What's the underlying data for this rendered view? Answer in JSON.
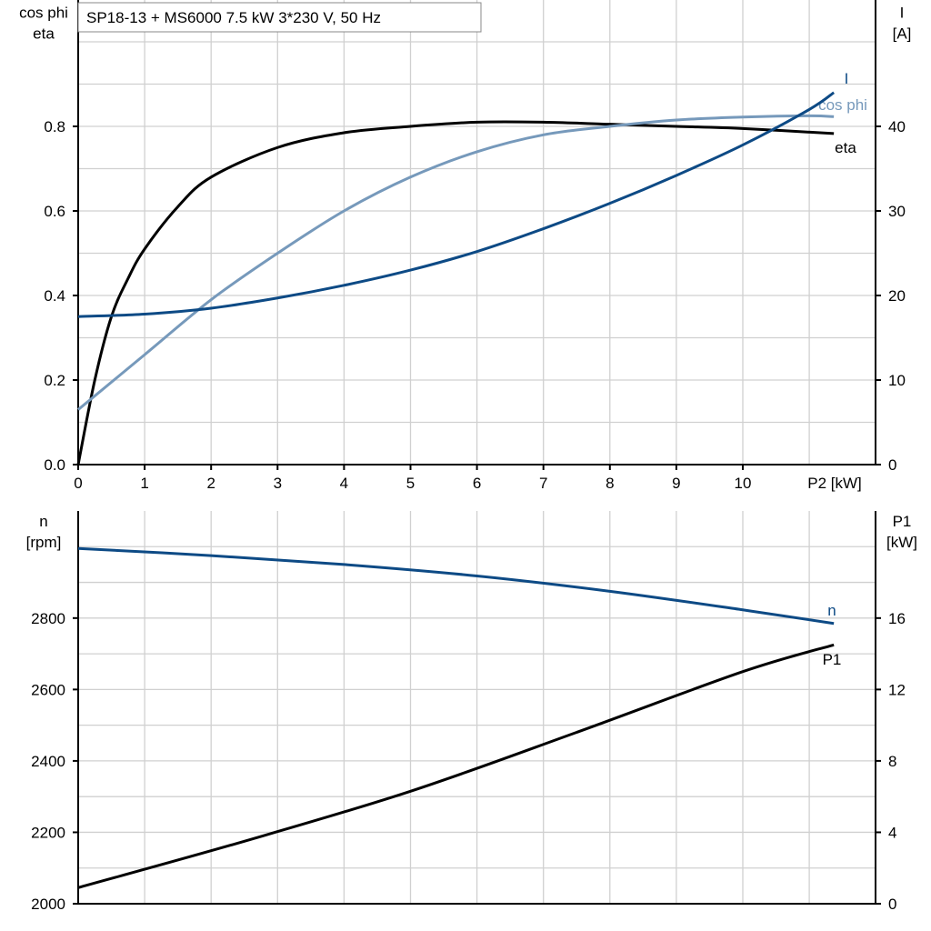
{
  "title": "SP18-13 + MS6000   7.5 kW   3*230 V, 50 Hz",
  "colors": {
    "eta": "#000000",
    "cos_phi": "#7699bb",
    "I": "#0d4a85",
    "n": "#0d4a85",
    "P1": "#000000",
    "grid": "#d0d0d0"
  },
  "chart_data": [
    {
      "type": "line",
      "xlabel": "P2 [kW]",
      "ylabel_left": [
        "cos phi",
        "eta"
      ],
      "ylabel_right": [
        "I",
        "[A]"
      ],
      "xlim": [
        0,
        12
      ],
      "ylim_left": [
        0,
        1.1
      ],
      "ylim_right": [
        0,
        55
      ],
      "x_ticks": [
        "0",
        "1",
        "2",
        "3",
        "4",
        "5",
        "6",
        "7",
        "8",
        "9",
        "10"
      ],
      "y_left_ticks": [
        "0.0",
        "0.2",
        "0.4",
        "0.6",
        "0.8"
      ],
      "y_right_ticks": [
        "0",
        "10",
        "20",
        "30",
        "40"
      ],
      "grid": true,
      "series": [
        {
          "name": "eta",
          "axis": "left",
          "x": [
            0,
            0.25,
            0.5,
            0.75,
            1,
            1.5,
            2,
            3,
            4,
            5,
            6,
            7,
            8,
            9,
            10,
            11.37
          ],
          "y": [
            0,
            0.2,
            0.35,
            0.44,
            0.51,
            0.61,
            0.68,
            0.75,
            0.785,
            0.8,
            0.81,
            0.81,
            0.805,
            0.8,
            0.795,
            0.783
          ]
        },
        {
          "name": "cos phi",
          "axis": "left",
          "x": [
            0,
            1,
            2,
            3,
            4,
            5,
            6,
            7,
            8,
            9,
            10,
            11,
            11.37
          ],
          "y": [
            0.13,
            0.26,
            0.39,
            0.5,
            0.6,
            0.68,
            0.74,
            0.78,
            0.8,
            0.815,
            0.822,
            0.825,
            0.823
          ]
        },
        {
          "name": "I",
          "axis": "right",
          "x": [
            0,
            1,
            2,
            3,
            4,
            5,
            6,
            7,
            8,
            9,
            10,
            11,
            11.37
          ],
          "y": [
            17.5,
            17.8,
            18.5,
            19.7,
            21.2,
            23,
            25.2,
            27.9,
            30.9,
            34.2,
            37.8,
            42,
            44
          ]
        }
      ]
    },
    {
      "type": "line",
      "ylabel_left": [
        "n",
        "[rpm]"
      ],
      "ylabel_right": [
        "P1",
        "[kW]"
      ],
      "xlim": [
        0,
        12
      ],
      "ylim_left": [
        2000,
        3100
      ],
      "ylim_right": [
        0,
        22
      ],
      "y_left_ticks": [
        "2000",
        "2200",
        "2400",
        "2600",
        "2800"
      ],
      "y_right_ticks": [
        "0",
        "4",
        "8",
        "12",
        "16"
      ],
      "grid": true,
      "series": [
        {
          "name": "n",
          "axis": "left",
          "x": [
            0,
            2,
            4,
            6,
            8,
            10,
            11.37
          ],
          "y": [
            2995,
            2975,
            2950,
            2918,
            2875,
            2823,
            2785
          ]
        },
        {
          "name": "P1",
          "axis": "right",
          "x": [
            0,
            2.5,
            5,
            7.5,
            10,
            11.37
          ],
          "y": [
            0.9,
            3.5,
            6.3,
            9.6,
            13.0,
            14.5
          ]
        }
      ]
    }
  ]
}
